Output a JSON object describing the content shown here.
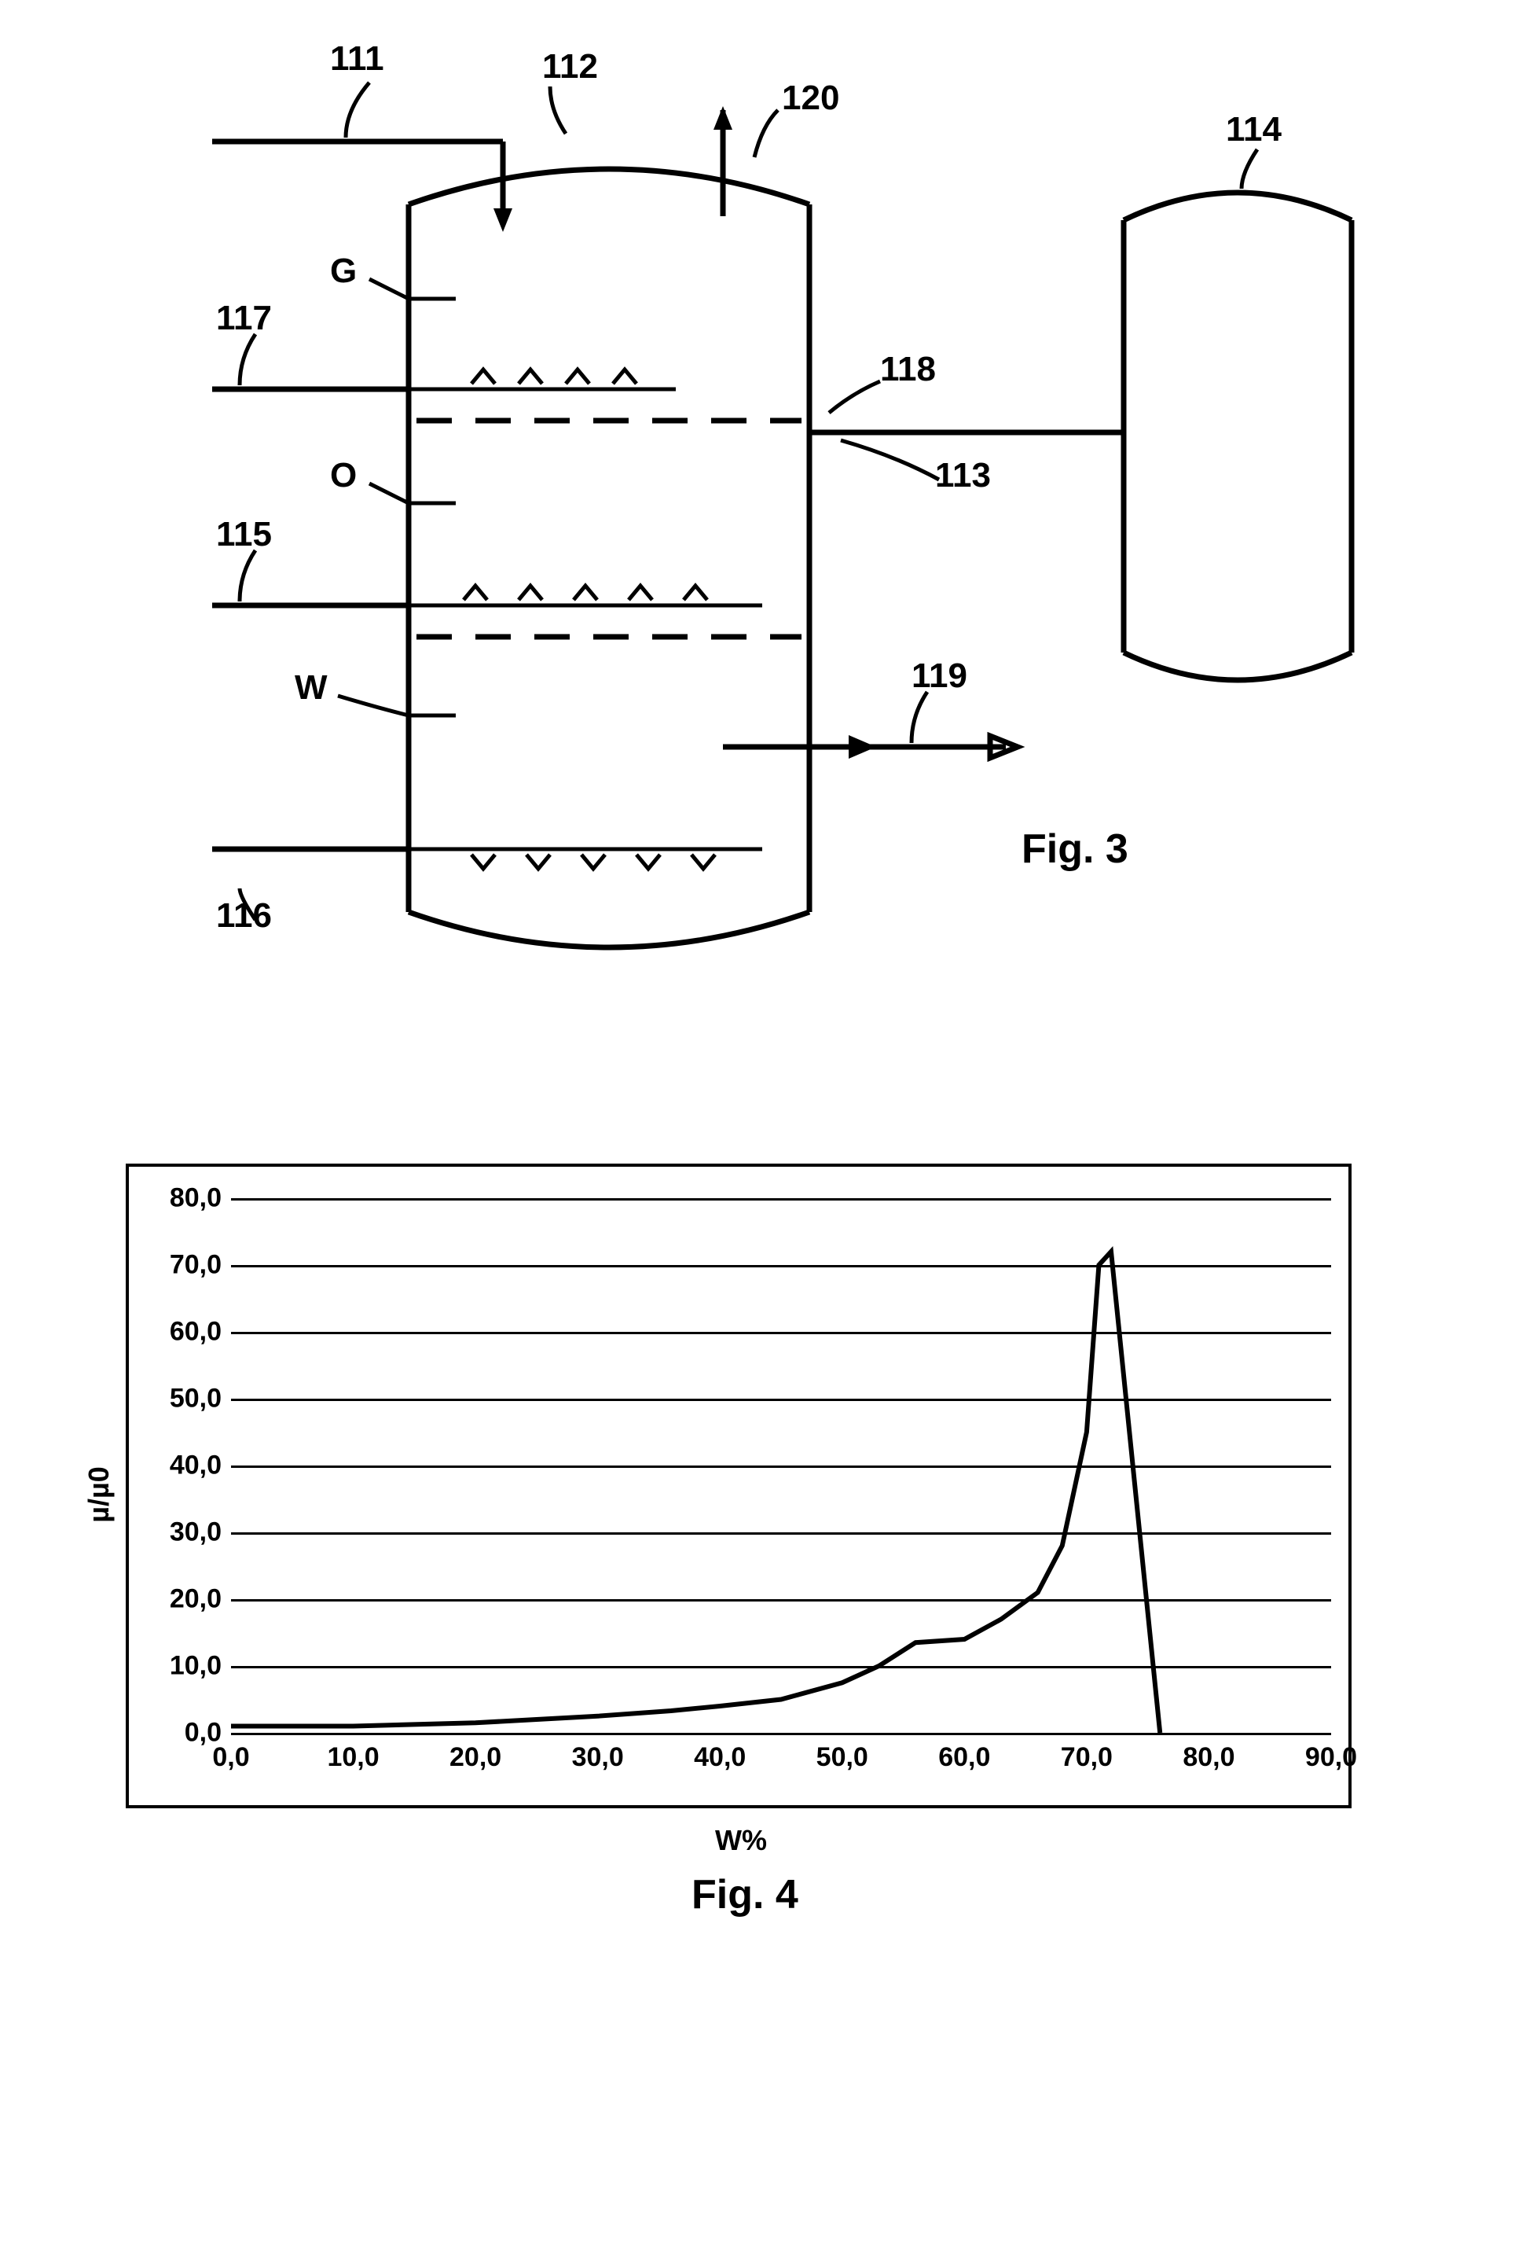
{
  "fig3": {
    "caption": "Fig. 3",
    "label_fontsize": 44,
    "caption_fontsize": 52,
    "stroke_width": 7,
    "stroke_color": "#000000",
    "labels": {
      "n111": "111",
      "n112": "112",
      "n113": "113",
      "n114": "114",
      "n115": "115",
      "n116": "116",
      "n117": "117",
      "n118": "118",
      "n119": "119",
      "n120": "120",
      "G": "G",
      "O": "O",
      "W": "W"
    }
  },
  "fig4": {
    "caption": "Fig. 4",
    "caption_fontsize": 52,
    "xlabel": "W%",
    "ylabel": "µ/µ0",
    "axis_fontsize": 36,
    "tick_fontsize": 34,
    "xlim": [
      0,
      90
    ],
    "ylim": [
      0,
      80
    ],
    "ytick_step": 10,
    "xtick_step": 10,
    "grid_color": "#000000",
    "border_color": "#000000",
    "background": "#ffffff",
    "line_color": "#000000",
    "line_width": 6,
    "yticks": [
      "0,0",
      "10,0",
      "20,0",
      "30,0",
      "40,0",
      "50,0",
      "60,0",
      "70,0",
      "80,0"
    ],
    "xticks": [
      "0,0",
      "10,0",
      "20,0",
      "30,0",
      "40,0",
      "50,0",
      "60,0",
      "70,0",
      "80,0",
      "90,0"
    ],
    "series": {
      "x": [
        0,
        10,
        20,
        25,
        30,
        36,
        40,
        45,
        50,
        53,
        56,
        60,
        63,
        66,
        68,
        70,
        71,
        72,
        76
      ],
      "y": [
        1.0,
        1.0,
        1.5,
        2.0,
        2.5,
        3.3,
        4.0,
        5.0,
        7.5,
        10,
        13.5,
        14,
        17,
        21,
        28,
        45,
        70,
        72,
        0.0
      ]
    }
  }
}
